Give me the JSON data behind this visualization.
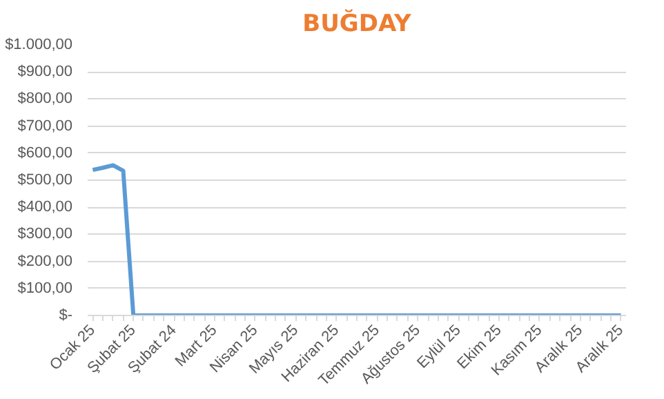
{
  "chart_data": {
    "type": "line",
    "title": "BUĞDAY",
    "categories": [
      "Ocak 25",
      null,
      null,
      null,
      "Şubat 25",
      null,
      null,
      null,
      "Şubat 24",
      null,
      null,
      null,
      "Mart 25",
      null,
      null,
      null,
      "Nisan 25",
      null,
      null,
      null,
      "Mayıs 25",
      null,
      null,
      null,
      "Haziran 25",
      null,
      null,
      null,
      "Temmuz 25",
      null,
      null,
      null,
      "Ağustos 25",
      null,
      null,
      null,
      "Eylül 25",
      null,
      null,
      null,
      "Ekim 25",
      null,
      null,
      null,
      "Kasım 25",
      null,
      null,
      null,
      "Aralık 25",
      null,
      null,
      null,
      "Aralık 25"
    ],
    "series": [
      {
        "color": "#5b9bd5",
        "values": [
          538,
          546,
          555,
          535,
          0,
          0,
          0,
          0,
          0,
          0,
          0,
          0,
          0,
          0,
          0,
          0,
          0,
          0,
          0,
          0,
          0,
          0,
          0,
          0,
          0,
          0,
          0,
          0,
          0,
          0,
          0,
          0,
          0,
          0,
          0,
          0,
          0,
          0,
          0,
          0,
          0,
          0,
          0,
          0,
          0,
          0,
          0,
          0,
          0,
          0,
          0,
          0,
          0
        ]
      }
    ],
    "ylim": [
      0,
      1000
    ],
    "yticks": [
      {
        "value": 0,
        "label": "$-"
      },
      {
        "value": 100,
        "label": "$100,00"
      },
      {
        "value": 200,
        "label": "$200,00"
      },
      {
        "value": 300,
        "label": "$300,00"
      },
      {
        "value": 400,
        "label": "$400,00"
      },
      {
        "value": 500,
        "label": "$500,00"
      },
      {
        "value": 600,
        "label": "$600,00"
      },
      {
        "value": 700,
        "label": "$700,00"
      },
      {
        "value": 800,
        "label": "$800,00"
      },
      {
        "value": 900,
        "label": "$900,00"
      },
      {
        "value": 1000,
        "label": "$1.000,00"
      }
    ],
    "grid": "y",
    "marker": "none",
    "line_style": "solid"
  }
}
